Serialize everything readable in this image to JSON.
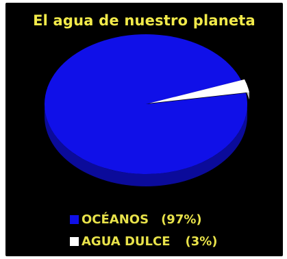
{
  "chart_data": {
    "type": "pie",
    "title": "El agua de nuestro planeta",
    "slices": [
      {
        "label": "OCÉANOS",
        "value": 97,
        "value_label": "(97%)",
        "color": "#1010e8",
        "side_color": "#0b0b9a"
      },
      {
        "label": "AGUA DULCE",
        "value": 3,
        "value_label": "(3%)",
        "color": "#ffffff",
        "side_color": "#bdbdbd"
      }
    ],
    "legend_placement": "bottom",
    "three_d": true
  },
  "colors": {
    "background": "#000000",
    "title": "#f2ea4a",
    "legend_text": "#e8e24a"
  }
}
